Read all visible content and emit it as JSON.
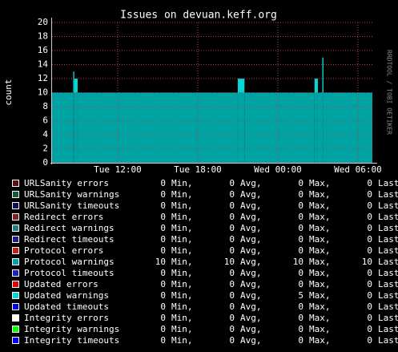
{
  "chart_data": {
    "type": "area",
    "title": "Issues on devuan.keff.org",
    "y_label": "count",
    "watermark": "RRDTOOL / TOBI OETIKER",
    "x": [
      "Tue 07:05",
      "Tue 08:40",
      "Tue 08:45",
      "Tue 09:00",
      "Tue 21:00",
      "Tue 21:30",
      "Wed 02:45",
      "Wed 03:00",
      "Wed 03:20",
      "Wed 03:25",
      "Wed 07:05"
    ],
    "xlim": [
      "Tue 07:05",
      "Wed 07:05"
    ],
    "xticks": [
      "Tue 12:00",
      "Tue 18:00",
      "Wed 00:00",
      "Wed 06:00"
    ],
    "ylim": [
      0,
      20
    ],
    "yticks": [
      0,
      2,
      4,
      6,
      8,
      10,
      12,
      14,
      16,
      18,
      20
    ],
    "grid": true,
    "stat_labels": [
      "Min,",
      "Avg,",
      "Max,",
      "Last"
    ],
    "series": [
      {
        "name": "URLSanity errors",
        "color": "#5a1010",
        "values": [
          0,
          0,
          0,
          0,
          0,
          0,
          0,
          0,
          0,
          0,
          0
        ],
        "stats": [
          0,
          0,
          0,
          0
        ]
      },
      {
        "name": "URLSanity warnings",
        "color": "#105a3a",
        "values": [
          0,
          0,
          0,
          0,
          0,
          0,
          0,
          0,
          0,
          0,
          0
        ],
        "stats": [
          0,
          0,
          0,
          0
        ]
      },
      {
        "name": "URLSanity timeouts",
        "color": "#10105a",
        "values": [
          0,
          0,
          0,
          0,
          0,
          0,
          0,
          0,
          0,
          0,
          0
        ],
        "stats": [
          0,
          0,
          0,
          0
        ]
      },
      {
        "name": "Redirect errors",
        "color": "#802020",
        "values": [
          0,
          0,
          0,
          0,
          0,
          0,
          0,
          0,
          0,
          0,
          0
        ],
        "stats": [
          0,
          0,
          0,
          0
        ]
      },
      {
        "name": "Redirect warnings",
        "color": "#208080",
        "values": [
          0,
          0,
          0,
          0,
          0,
          0,
          0,
          0,
          0,
          0,
          0
        ],
        "stats": [
          0,
          0,
          0,
          0
        ]
      },
      {
        "name": "Redirect timeouts",
        "color": "#202080",
        "values": [
          0,
          0,
          0,
          0,
          0,
          0,
          0,
          0,
          0,
          0,
          0
        ],
        "stats": [
          0,
          0,
          0,
          0
        ]
      },
      {
        "name": "Protocol errors",
        "color": "#c02020",
        "values": [
          0,
          0,
          0,
          0,
          0,
          0,
          0,
          0,
          0,
          0,
          0
        ],
        "stats": [
          0,
          0,
          0,
          0
        ]
      },
      {
        "name": "Protocol warnings",
        "color": "#00a3a3",
        "values": [
          10,
          10,
          10,
          10,
          10,
          10,
          10,
          10,
          10,
          10,
          10
        ],
        "stats": [
          10,
          10,
          10,
          10
        ]
      },
      {
        "name": "Protocol timeouts",
        "color": "#2020c0",
        "values": [
          0,
          0,
          0,
          0,
          0,
          0,
          0,
          0,
          0,
          0,
          0
        ],
        "stats": [
          0,
          0,
          0,
          0
        ]
      },
      {
        "name": "Updated errors",
        "color": "#e00000",
        "values": [
          0,
          0,
          0,
          0,
          0,
          0,
          0,
          0,
          0,
          0,
          0
        ],
        "stats": [
          0,
          0,
          0,
          0
        ]
      },
      {
        "name": "Updated warnings",
        "color": "#00d8d8",
        "values": [
          0,
          3,
          2,
          0,
          2,
          0,
          2,
          0,
          5,
          0,
          0
        ],
        "stats": [
          0,
          0,
          5,
          0
        ]
      },
      {
        "name": "Updated timeouts",
        "color": "#0000e0",
        "values": [
          0,
          0,
          0,
          0,
          0,
          0,
          0,
          0,
          0,
          0,
          0
        ],
        "stats": [
          0,
          0,
          0,
          0
        ]
      },
      {
        "name": "Integrity errors",
        "color": "#ffffff",
        "values": [
          0,
          0,
          0,
          0,
          0,
          0,
          0,
          0,
          0,
          0,
          0
        ],
        "stats": [
          0,
          0,
          0,
          0
        ]
      },
      {
        "name": "Integrity warnings",
        "color": "#00ff00",
        "values": [
          0,
          0,
          0,
          0,
          0,
          0,
          0,
          0,
          0,
          0,
          0
        ],
        "stats": [
          0,
          0,
          0,
          0
        ]
      },
      {
        "name": "Integrity timeouts",
        "color": "#0000ff",
        "values": [
          0,
          0,
          0,
          0,
          0,
          0,
          0,
          0,
          0,
          0,
          0
        ],
        "stats": [
          0,
          0,
          0,
          0
        ]
      }
    ]
  }
}
